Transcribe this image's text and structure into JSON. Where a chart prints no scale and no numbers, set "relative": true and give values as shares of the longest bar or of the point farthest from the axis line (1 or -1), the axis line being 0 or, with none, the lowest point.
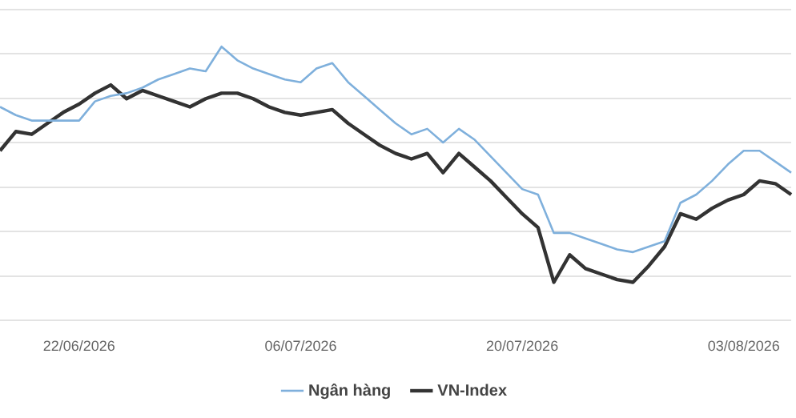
{
  "chart_data": {
    "type": "line",
    "relative": true,
    "grid": "y",
    "legend": "bottom",
    "marker": "none",
    "line_style": "solid",
    "categories": [
      null,
      null,
      null,
      null,
      null,
      "22/06/2026",
      null,
      null,
      null,
      null,
      null,
      null,
      null,
      null,
      null,
      null,
      null,
      null,
      null,
      "06/07/2026",
      null,
      null,
      null,
      null,
      null,
      null,
      null,
      null,
      null,
      null,
      null,
      null,
      null,
      "20/07/2026",
      null,
      null,
      null,
      null,
      null,
      null,
      null,
      null,
      null,
      null,
      null,
      null,
      null,
      "03/08/2026",
      null,
      null,
      null
    ],
    "series": [
      {
        "name": "Ngân hàng",
        "color": "#7fb0dc",
        "values": [
          0.78,
          0.75,
          0.73,
          0.73,
          0.73,
          0.73,
          0.8,
          0.82,
          0.83,
          0.85,
          0.88,
          0.9,
          0.92,
          0.91,
          1,
          0.95,
          0.92,
          0.9,
          0.88,
          0.87,
          0.92,
          0.94,
          0.87,
          0.82,
          0.77,
          0.72,
          0.68,
          0.7,
          0.65,
          0.7,
          0.66,
          0.6,
          0.54,
          0.48,
          0.46,
          0.32,
          0.32,
          0.3,
          0.28,
          0.26,
          0.25,
          0.27,
          0.29,
          0.43,
          0.46,
          0.51,
          0.57,
          0.62,
          0.62,
          0.58,
          0.54
        ]
      },
      {
        "name": "VN-Index",
        "color": "#333333",
        "values": [
          0.62,
          0.69,
          0.68,
          0.72,
          0.76,
          0.79,
          0.83,
          0.86,
          0.81,
          0.84,
          0.82,
          0.8,
          0.78,
          0.81,
          0.83,
          0.83,
          0.81,
          0.78,
          0.76,
          0.75,
          0.76,
          0.77,
          0.72,
          0.68,
          0.64,
          0.61,
          0.59,
          0.61,
          0.54,
          0.61,
          0.56,
          0.51,
          0.45,
          0.39,
          0.34,
          0.14,
          0.24,
          0.19,
          0.17,
          0.15,
          0.14,
          0.2,
          0.27,
          0.39,
          0.37,
          0.41,
          0.44,
          0.46,
          0.51,
          0.5,
          0.46
        ]
      }
    ]
  }
}
